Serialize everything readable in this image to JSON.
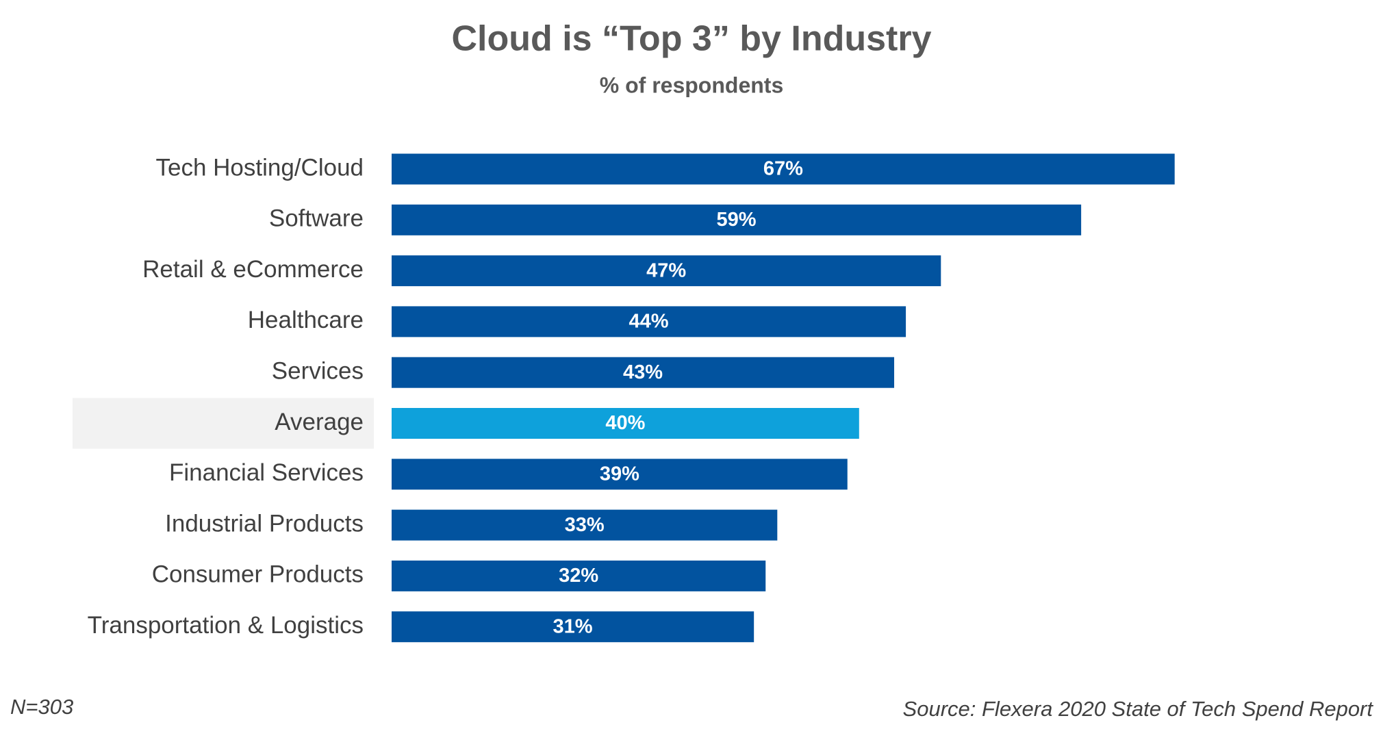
{
  "chart_data": {
    "type": "bar",
    "orientation": "horizontal",
    "title": "Cloud is “Top 3” by Industry",
    "subtitle": "% of respondents",
    "categories": [
      "Tech Hosting/Cloud",
      "Software",
      "Retail & eCommerce",
      "Healthcare",
      "Services",
      "Average",
      "Financial Services",
      "Industrial Products",
      "Consumer Products",
      "Transportation & Logistics"
    ],
    "values": [
      67,
      59,
      47,
      44,
      43,
      40,
      39,
      33,
      32,
      31
    ],
    "value_labels": [
      "67%",
      "59%",
      "47%",
      "44%",
      "43%",
      "40%",
      "39%",
      "33%",
      "32%",
      "31%"
    ],
    "color": "#02539f",
    "colors": [
      "#02539f",
      "#02539f",
      "#02539f",
      "#02539f",
      "#02539f",
      "#0ea1db",
      "#02539f",
      "#02539f",
      "#02539f",
      "#02539f"
    ],
    "note": "N=303",
    "source": "Source: Flexera 2020 State of Tech Spend Report"
  }
}
